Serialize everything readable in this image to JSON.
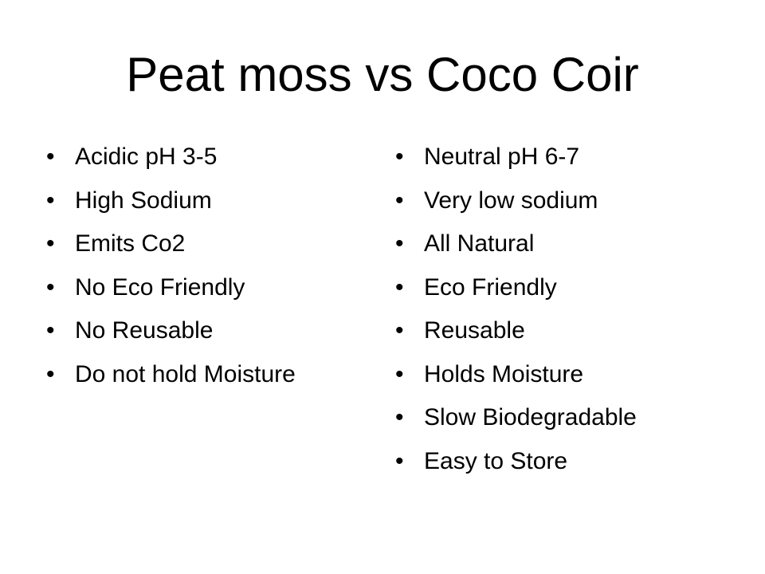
{
  "slide": {
    "title": "Peat moss vs Coco Coir",
    "bullet_glyph": "•",
    "left_column": [
      "Acidic pH 3-5",
      "High Sodium",
      "Emits Co2",
      "No Eco Friendly",
      "No Reusable",
      "Do not hold Moisture"
    ],
    "right_column": [
      "Neutral pH 6-7",
      "Very low sodium",
      "All Natural",
      "Eco Friendly",
      "Reusable",
      "Holds Moisture",
      "Slow Biodegradable",
      "Easy to Store"
    ]
  }
}
